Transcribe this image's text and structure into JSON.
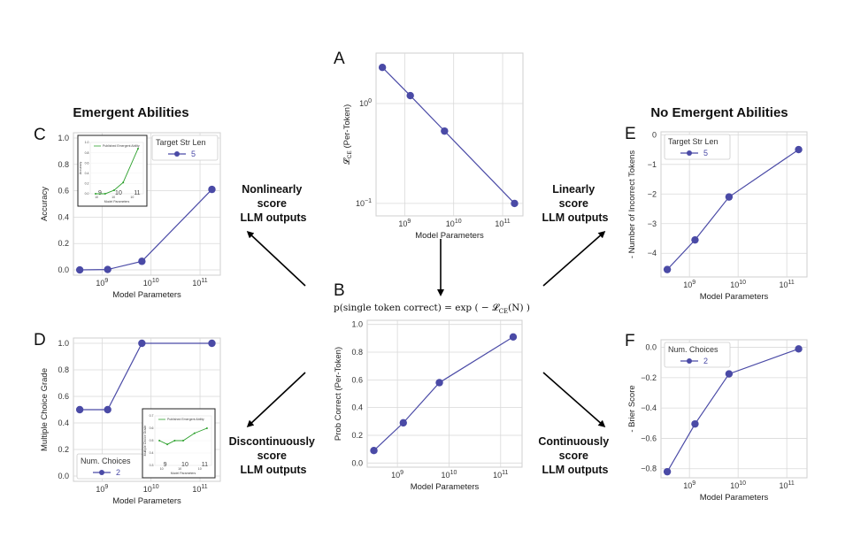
{
  "headings": {
    "left": "Emergent Abilities",
    "right": "No Emergent Abilities"
  },
  "side_labels": {
    "nonlinear": [
      "Nonlinearly",
      "score",
      "LLM outputs"
    ],
    "linear": [
      "Linearly",
      "score",
      "LLM outputs"
    ],
    "discontinuous": [
      "Discontinuously",
      "score",
      "LLM outputs"
    ],
    "continuous": [
      "Continuously",
      "score",
      "LLM outputs"
    ]
  },
  "formula_B": "p(single token correct) = exp ( − 𝓛",
  "formula_B_sub": "CE",
  "formula_B_tail": "(N) )",
  "colors": {
    "series": "#4a4aa6",
    "inset": "#2ca02c",
    "grid": "#d9d9d9"
  },
  "chart_data": [
    {
      "id": "A",
      "type": "line",
      "letter": "A",
      "x": [
        350000000.0,
        1300000000.0,
        6500000000.0,
        175000000000.0
      ],
      "values": [
        2.3,
        1.2,
        0.53,
        0.1
      ],
      "xscale": "log",
      "yscale": "log",
      "xlim": [
        260000000.0,
        260000000000.0
      ],
      "ylim": [
        0.075,
        3.2
      ],
      "xticks": [
        1000000000.0,
        10000000000.0,
        100000000000.0
      ],
      "xticklabels": [
        "10^9",
        "10^10",
        "10^11"
      ],
      "yticks": [
        0.1,
        1
      ],
      "yticklabels": [
        "10^−1",
        "10^0"
      ],
      "xlabel": "Model Parameters",
      "ylabel": "𝓛_CE (Per-Token)",
      "grid": true
    },
    {
      "id": "B",
      "type": "line",
      "letter": "B",
      "x": [
        350000000.0,
        1300000000.0,
        6500000000.0,
        175000000000.0
      ],
      "values": [
        0.09,
        0.29,
        0.58,
        0.91
      ],
      "xscale": "log",
      "xlim": [
        260000000.0,
        260000000000.0
      ],
      "ylim": [
        -0.03,
        1.03
      ],
      "xticks": [
        1000000000.0,
        10000000000.0,
        100000000000.0
      ],
      "xticklabels": [
        "10^9",
        "10^10",
        "10^11"
      ],
      "yticks": [
        0.0,
        0.2,
        0.4,
        0.6,
        0.8,
        1.0
      ],
      "yticklabels": [
        "0.0",
        "0.2",
        "0.4",
        "0.6",
        "0.8",
        "1.0"
      ],
      "xlabel": "Model Parameters",
      "ylabel": "Prob Correct (Per-Token)",
      "grid": true
    },
    {
      "id": "C",
      "type": "line",
      "letter": "C",
      "x": [
        350000000.0,
        1300000000.0,
        6500000000.0,
        175000000000.0
      ],
      "values": [
        0.0,
        0.003,
        0.065,
        0.61
      ],
      "xscale": "log",
      "xlim": [
        260000000.0,
        260000000000.0
      ],
      "ylim": [
        -0.04,
        1.04
      ],
      "xticks": [
        1000000000.0,
        10000000000.0,
        100000000000.0
      ],
      "xticklabels": [
        "10^9",
        "10^10",
        "10^11"
      ],
      "yticks": [
        0.0,
        0.2,
        0.4,
        0.6,
        0.8,
        1.0
      ],
      "yticklabels": [
        "0.0",
        "0.2",
        "0.4",
        "0.6",
        "0.8",
        "1.0"
      ],
      "xlabel": "Model Parameters",
      "ylabel": "Accuracy",
      "legend": {
        "title": "Target Str Len",
        "value": "5",
        "position": "top-right"
      },
      "grid": true,
      "inset": {
        "position": "top-left",
        "legend": "Published Emergent Ability",
        "x": [
          0.1,
          0.28,
          0.45,
          0.62,
          0.9
        ],
        "values": [
          0.0,
          0.0,
          0.07,
          0.22,
          0.88
        ],
        "xlabel": "Model Parameters",
        "ylabel": "Accuracy",
        "yticklabels": [
          "0.0",
          "0.2",
          "0.4",
          "0.6",
          "0.8",
          "1.0"
        ],
        "xticklabels": [
          "10^9",
          "10^10",
          "10^11"
        ]
      }
    },
    {
      "id": "D",
      "type": "line",
      "letter": "D",
      "x": [
        350000000.0,
        1300000000.0,
        6500000000.0,
        175000000000.0
      ],
      "values": [
        0.5,
        0.5,
        1.0,
        1.0
      ],
      "xscale": "log",
      "xlim": [
        260000000.0,
        260000000000.0
      ],
      "ylim": [
        -0.04,
        1.04
      ],
      "xticks": [
        1000000000.0,
        10000000000.0,
        100000000000.0
      ],
      "xticklabels": [
        "10^9",
        "10^10",
        "10^11"
      ],
      "yticks": [
        0.0,
        0.2,
        0.4,
        0.6,
        0.8,
        1.0
      ],
      "yticklabels": [
        "0.0",
        "0.2",
        "0.4",
        "0.6",
        "0.8",
        "1.0"
      ],
      "xlabel": "Model Parameters",
      "ylabel": "Multiple Choice Grade",
      "legend": {
        "title": "Num. Choices",
        "value": "2",
        "position": "bottom-left"
      },
      "grid": true,
      "inset": {
        "position": "bottom-right",
        "legend": "Published Emergent Ability",
        "x": [
          0.08,
          0.22,
          0.35,
          0.5,
          0.7,
          0.92
        ],
        "values": [
          0.5,
          0.47,
          0.5,
          0.5,
          0.56,
          0.6
        ],
        "xlabel": "Model Parameters",
        "ylabel": "Multiple Choice Grade",
        "yticklabels": [
          "0.3",
          "0.4",
          "0.5",
          "0.6",
          "0.7"
        ],
        "xticklabels": [
          "10^9",
          "10^10",
          "10^11"
        ]
      }
    },
    {
      "id": "E",
      "type": "line",
      "letter": "E",
      "x": [
        350000000.0,
        1300000000.0,
        6500000000.0,
        175000000000.0
      ],
      "values": [
        -4.55,
        -3.55,
        -2.1,
        -0.5
      ],
      "xscale": "log",
      "xlim": [
        260000000.0,
        260000000000.0
      ],
      "ylim": [
        -4.8,
        0.1
      ],
      "xticks": [
        1000000000.0,
        10000000000.0,
        100000000000.0
      ],
      "xticklabels": [
        "10^9",
        "10^10",
        "10^11"
      ],
      "yticks": [
        0,
        -1,
        -2,
        -3,
        -4
      ],
      "yticklabels": [
        "0",
        "−1",
        "−2",
        "−3",
        "−4"
      ],
      "xlabel": "Model Parameters",
      "ylabel": "- Number of Incorrect Tokens",
      "legend": {
        "title": "Target Str Len",
        "value": "5",
        "position": "top-left"
      },
      "grid": true
    },
    {
      "id": "F",
      "type": "line",
      "letter": "F",
      "x": [
        350000000.0,
        1300000000.0,
        6500000000.0,
        175000000000.0
      ],
      "values": [
        -0.82,
        -0.505,
        -0.175,
        -0.01
      ],
      "xscale": "log",
      "xlim": [
        260000000.0,
        260000000000.0
      ],
      "ylim": [
        -0.86,
        0.05
      ],
      "xticks": [
        1000000000.0,
        10000000000.0,
        100000000000.0
      ],
      "xticklabels": [
        "10^9",
        "10^10",
        "10^11"
      ],
      "yticks": [
        0.0,
        -0.2,
        -0.4,
        -0.6,
        -0.8
      ],
      "yticklabels": [
        "0.0",
        "−0.2",
        "−0.4",
        "−0.6",
        "−0.8"
      ],
      "xlabel": "Model Parameters",
      "ylabel": "- Brier Score",
      "legend": {
        "title": "Num. Choices",
        "value": "2",
        "position": "top-left"
      },
      "grid": true
    }
  ]
}
